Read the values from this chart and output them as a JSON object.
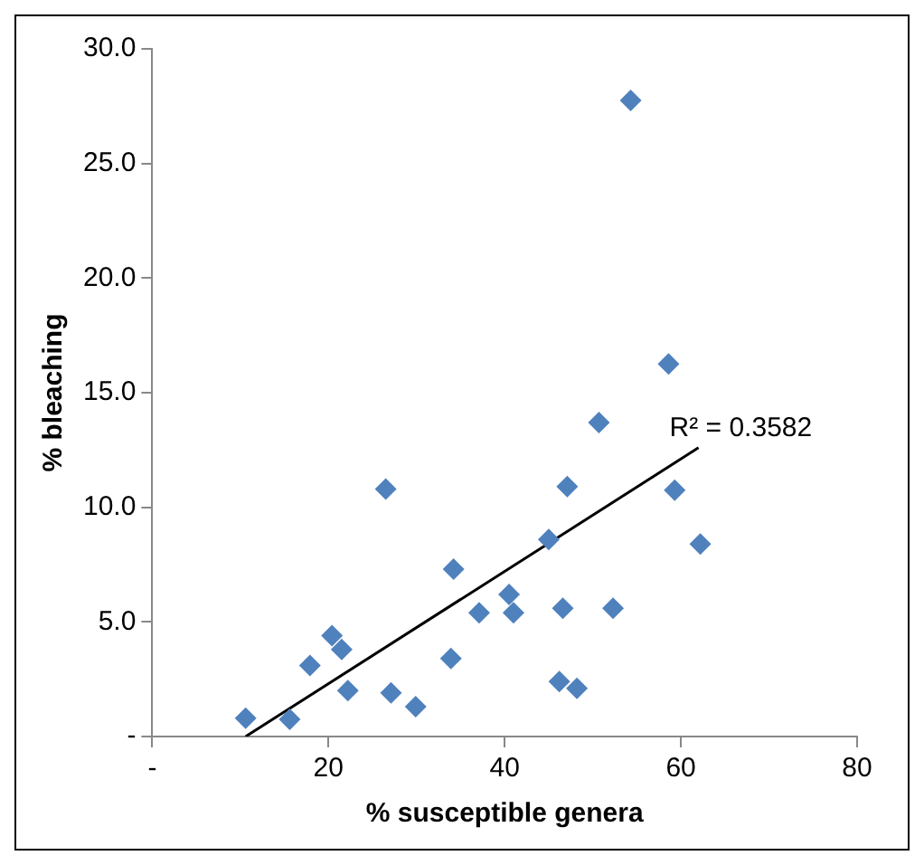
{
  "chart_data": {
    "type": "scatter",
    "xlabel": "% susceptible genera",
    "ylabel": "% bleaching",
    "marker": "diamond",
    "series": [
      {
        "color": "#4f81bd",
        "x": [
          10.6,
          15.6,
          17.9,
          20.4,
          21.5,
          22.2,
          26.5,
          27.1,
          29.9,
          34.2,
          33.9,
          37.1,
          40.5,
          41.0,
          45.0,
          46.2,
          48.2,
          50.7,
          47.1,
          59.3,
          62.2,
          58.6,
          54.3,
          46.6,
          52.3
        ],
        "values": [
          0.8,
          0.75,
          3.1,
          4.4,
          3.8,
          2.0,
          10.8,
          1.9,
          1.3,
          7.3,
          3.4,
          5.4,
          6.2,
          5.4,
          8.6,
          2.4,
          2.1,
          13.7,
          10.9,
          10.75,
          8.4,
          16.25,
          27.75,
          5.6,
          5.6
        ]
      },
      {
        "type": "line",
        "color": "#000000",
        "marker": "none",
        "x": [
          10.6,
          62.0
        ],
        "values": [
          0,
          12.6
        ]
      }
    ],
    "annotations": [
      {
        "text": "R² = 0.3582",
        "x": 62.0,
        "y": 12.6
      }
    ],
    "xlim": [
      0,
      80
    ],
    "xticks": [
      {
        "value": 0,
        "label": "-"
      },
      20,
      40,
      60,
      80
    ],
    "ylim": [
      0,
      30
    ],
    "yticks": [
      {
        "value": 0,
        "label": "-"
      },
      {
        "value": 5,
        "label": "5.0"
      },
      {
        "value": 10,
        "label": "10.0"
      },
      {
        "value": 15,
        "label": "15.0"
      },
      {
        "value": 20,
        "label": "20.0"
      },
      {
        "value": 25,
        "label": "25.0"
      },
      {
        "value": 30,
        "label": "30.0"
      }
    ]
  }
}
